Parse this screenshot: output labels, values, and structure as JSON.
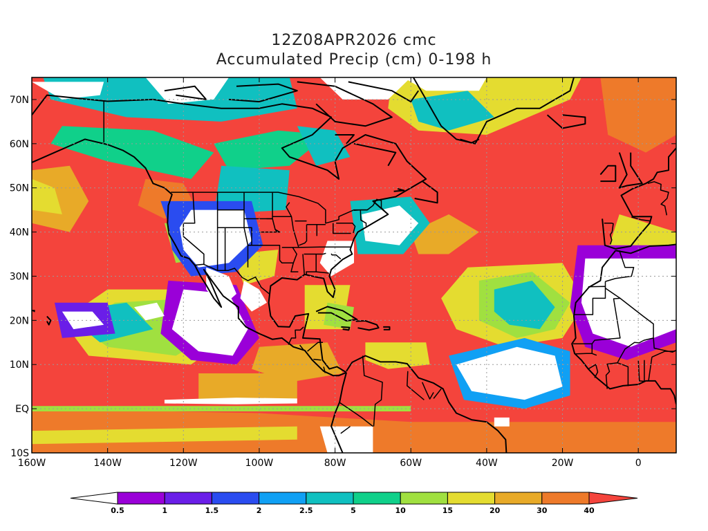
{
  "title": {
    "line1": "12Z08APR2026 cmc",
    "line2": "Accumulated Precip (cm) 0-198 h"
  },
  "map": {
    "lon_range": [
      -160,
      10
    ],
    "lat_range": [
      -10,
      75
    ],
    "lon_ticks": [
      {
        "value": -160,
        "label": "160W"
      },
      {
        "value": -140,
        "label": "140W"
      },
      {
        "value": -120,
        "label": "120W"
      },
      {
        "value": -100,
        "label": "100W"
      },
      {
        "value": -80,
        "label": "80W"
      },
      {
        "value": -60,
        "label": "60W"
      },
      {
        "value": -40,
        "label": "40W"
      },
      {
        "value": -20,
        "label": "20W"
      },
      {
        "value": 0,
        "label": "0"
      }
    ],
    "lat_ticks": [
      {
        "value": -10,
        "label": "10S"
      },
      {
        "value": 0,
        "label": "EQ"
      },
      {
        "value": 10,
        "label": "10N"
      },
      {
        "value": 20,
        "label": "20N"
      },
      {
        "value": 30,
        "label": "30N"
      },
      {
        "value": 40,
        "label": "40N"
      },
      {
        "value": 50,
        "label": "50N"
      },
      {
        "value": 60,
        "label": "60N"
      },
      {
        "value": 70,
        "label": "70N"
      }
    ],
    "grid": true
  },
  "colorbar": {
    "levels": [
      "0.5",
      "1",
      "1.5",
      "2",
      "2.5",
      "5",
      "10",
      "15",
      "20",
      "30",
      "40"
    ],
    "colors": [
      "#ffffff",
      "#9a00d8",
      "#6a1ee8",
      "#2a4cf0",
      "#10a0f4",
      "#10c0c0",
      "#10d08a",
      "#a0e040",
      "#e4dc30",
      "#e8aa28",
      "#ee7a2a",
      "#f4443c"
    ]
  },
  "palette": {
    "background": "#ffffff",
    "heavy": "#f4443c",
    "orange": "#ee7a2a",
    "gold": "#e8aa28",
    "yellow": "#e4dc30",
    "lime": "#a0e040",
    "green": "#10d08a",
    "teal": "#10c0c0",
    "sky": "#10a0f4",
    "blue": "#2a4cf0",
    "indigo": "#6a1ee8",
    "purple": "#9a00d8",
    "dry": "#ffffff",
    "coast": "#000000"
  }
}
